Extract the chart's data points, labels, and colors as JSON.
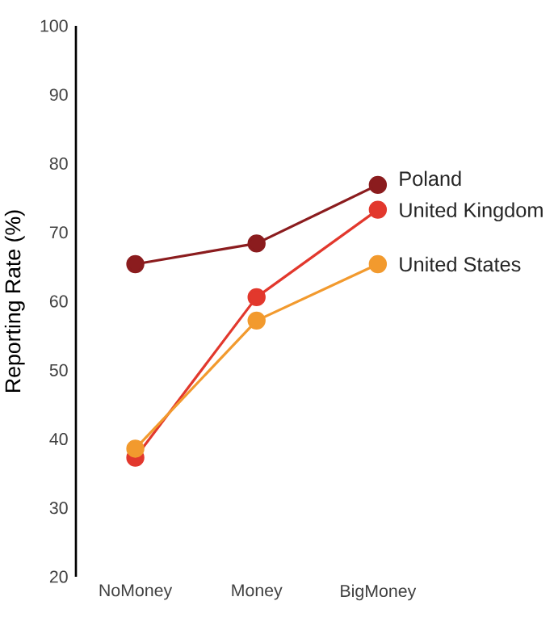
{
  "chart_data": {
    "type": "line",
    "ylabel": "Reporting Rate (%)",
    "categories": [
      "NoMoney",
      "Money",
      "BigMoney"
    ],
    "series": [
      {
        "name": "Poland",
        "color": "#8b1c1e",
        "values": [
          65.4,
          68.4,
          76.9
        ]
      },
      {
        "name": "United Kingdom",
        "color": "#e2382d",
        "values": [
          37.3,
          60.6,
          73.3
        ]
      },
      {
        "name": "United States",
        "color": "#f29a2e",
        "values": [
          38.6,
          57.2,
          65.4
        ]
      }
    ],
    "ylim": [
      20,
      100
    ],
    "yticks": [
      20,
      30,
      40,
      50,
      60,
      70,
      80,
      90,
      100
    ],
    "marker": "circle",
    "line_style": "solid"
  }
}
